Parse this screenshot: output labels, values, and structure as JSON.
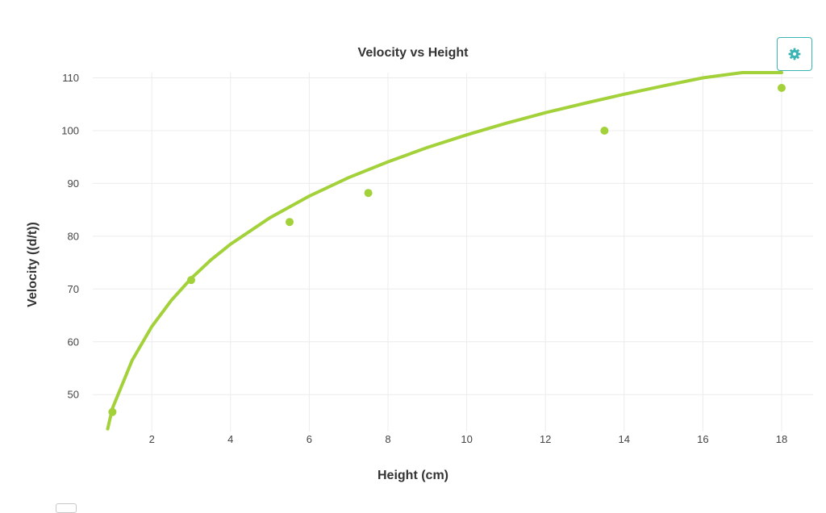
{
  "chart_data": {
    "type": "scatter",
    "title": "Velocity vs Height",
    "xlabel": "Height (cm)",
    "ylabel": "Velocity ((d/t))",
    "xlim": [
      0.5,
      18.8
    ],
    "ylim": [
      43,
      111
    ],
    "xticks": [
      2,
      4,
      6,
      8,
      10,
      12,
      14,
      16,
      18
    ],
    "yticks": [
      50,
      60,
      70,
      80,
      90,
      100,
      110
    ],
    "grid": true,
    "series": [
      {
        "type": "scatter",
        "x": [
          1,
          3,
          5.5,
          7.5,
          13.5,
          18
        ],
        "y": [
          46.7,
          71.7,
          82.7,
          88.2,
          100,
          108.1
        ]
      },
      {
        "type": "line",
        "x": [
          0.88,
          1,
          1.5,
          2,
          2.5,
          3,
          3.5,
          4,
          5,
          6,
          7,
          8,
          9,
          10,
          11,
          12,
          13,
          14,
          15,
          16,
          17,
          18
        ],
        "y": [
          43.5,
          47.4,
          56.5,
          62.9,
          67.9,
          72,
          75.5,
          78.5,
          83.5,
          87.6,
          91.1,
          94.1,
          96.8,
          99.2,
          101.4,
          103.4,
          105.2,
          106.9,
          108.5,
          110,
          111.4,
          112.7
        ]
      }
    ],
    "colors": {
      "series": "#a3d13a",
      "grid": "#ececec",
      "accent": "#3bb4b4"
    }
  },
  "toolbar": {
    "settings_icon": "gear-icon"
  }
}
